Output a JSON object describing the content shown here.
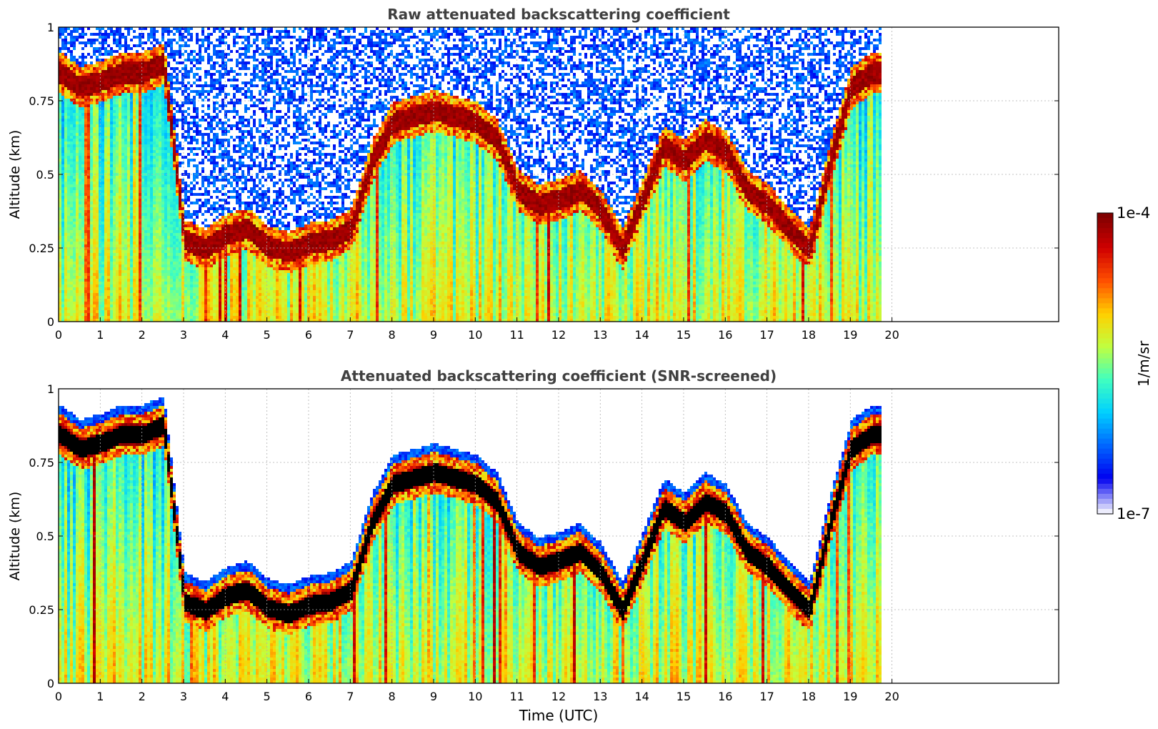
{
  "chart_data": [
    {
      "type": "heatmap",
      "title": "Raw attenuated backscattering coefficient",
      "xlabel": "",
      "ylabel": "Altitude (km)",
      "xlim": [
        0,
        24
      ],
      "ylim": [
        0,
        1
      ],
      "x_ticks": [
        "0",
        "1",
        "2",
        "3",
        "4",
        "5",
        "6",
        "7",
        "8",
        "9",
        "10",
        "11",
        "12",
        "13",
        "14",
        "15",
        "16",
        "17",
        "18",
        "19",
        "20"
      ],
      "y_ticks": [
        "0",
        "0.25",
        "0.5",
        "0.75",
        "1"
      ],
      "grid": true,
      "data_end_hour": 19.8,
      "screened": false,
      "cloud_layer_km": [
        [
          0.0,
          0.85
        ],
        [
          0.5,
          0.8
        ],
        [
          1.0,
          0.82
        ],
        [
          1.5,
          0.85
        ],
        [
          2.0,
          0.85
        ],
        [
          2.5,
          0.88
        ],
        [
          3.0,
          0.28
        ],
        [
          3.5,
          0.25
        ],
        [
          4.0,
          0.3
        ],
        [
          4.5,
          0.32
        ],
        [
          5.0,
          0.26
        ],
        [
          5.5,
          0.24
        ],
        [
          6.0,
          0.27
        ],
        [
          6.5,
          0.28
        ],
        [
          7.0,
          0.32
        ],
        [
          7.5,
          0.55
        ],
        [
          8.0,
          0.68
        ],
        [
          8.5,
          0.7
        ],
        [
          9.0,
          0.72
        ],
        [
          9.5,
          0.7
        ],
        [
          10.0,
          0.68
        ],
        [
          10.5,
          0.62
        ],
        [
          11.0,
          0.45
        ],
        [
          11.5,
          0.4
        ],
        [
          12.0,
          0.42
        ],
        [
          12.5,
          0.45
        ],
        [
          13.0,
          0.38
        ],
        [
          13.5,
          0.25
        ],
        [
          14.0,
          0.42
        ],
        [
          14.5,
          0.6
        ],
        [
          15.0,
          0.55
        ],
        [
          15.5,
          0.62
        ],
        [
          16.0,
          0.58
        ],
        [
          16.5,
          0.45
        ],
        [
          17.0,
          0.4
        ],
        [
          17.5,
          0.32
        ],
        [
          18.0,
          0.25
        ],
        [
          18.5,
          0.55
        ],
        [
          19.0,
          0.8
        ],
        [
          19.5,
          0.85
        ]
      ]
    },
    {
      "type": "heatmap",
      "title": "Attenuated backscattering coefficient (SNR-screened)",
      "xlabel": "Time (UTC)",
      "ylabel": "Altitude (km)",
      "xlim": [
        0,
        24
      ],
      "ylim": [
        0,
        1
      ],
      "x_ticks": [
        "0",
        "1",
        "2",
        "3",
        "4",
        "5",
        "6",
        "7",
        "8",
        "9",
        "10",
        "11",
        "12",
        "13",
        "14",
        "15",
        "16",
        "17",
        "18",
        "19",
        "20"
      ],
      "y_ticks": [
        "0",
        "0.25",
        "0.5",
        "0.75",
        "1"
      ],
      "grid": true,
      "data_end_hour": 19.8,
      "screened": true,
      "cloud_layer_km": [
        [
          0.0,
          0.85
        ],
        [
          0.5,
          0.8
        ],
        [
          1.0,
          0.82
        ],
        [
          1.5,
          0.85
        ],
        [
          2.0,
          0.85
        ],
        [
          2.5,
          0.88
        ],
        [
          3.0,
          0.28
        ],
        [
          3.5,
          0.25
        ],
        [
          4.0,
          0.3
        ],
        [
          4.5,
          0.32
        ],
        [
          5.0,
          0.26
        ],
        [
          5.5,
          0.24
        ],
        [
          6.0,
          0.27
        ],
        [
          6.5,
          0.28
        ],
        [
          7.0,
          0.32
        ],
        [
          7.5,
          0.55
        ],
        [
          8.0,
          0.68
        ],
        [
          8.5,
          0.7
        ],
        [
          9.0,
          0.72
        ],
        [
          9.5,
          0.7
        ],
        [
          10.0,
          0.68
        ],
        [
          10.5,
          0.62
        ],
        [
          11.0,
          0.45
        ],
        [
          11.5,
          0.4
        ],
        [
          12.0,
          0.42
        ],
        [
          12.5,
          0.45
        ],
        [
          13.0,
          0.38
        ],
        [
          13.5,
          0.25
        ],
        [
          14.0,
          0.42
        ],
        [
          14.5,
          0.6
        ],
        [
          15.0,
          0.55
        ],
        [
          15.5,
          0.62
        ],
        [
          16.0,
          0.58
        ],
        [
          16.5,
          0.45
        ],
        [
          17.0,
          0.4
        ],
        [
          17.5,
          0.32
        ],
        [
          18.0,
          0.25
        ],
        [
          18.5,
          0.55
        ],
        [
          19.0,
          0.8
        ],
        [
          19.5,
          0.85
        ]
      ]
    }
  ],
  "colorbar": {
    "max_label": "1e-4",
    "min_label": "1e-7",
    "unit_label": "1/m/sr",
    "colormap": "jet",
    "colormap_stops": [
      "#ececfc",
      "#0000f0",
      "#0066ff",
      "#00d0ff",
      "#40ffc0",
      "#c0ff40",
      "#ffd000",
      "#ff5000",
      "#d00000",
      "#800000"
    ]
  },
  "colors": {
    "axis": "#000000",
    "grid": "#b0b0b0",
    "title": "#404040",
    "screened_cloud": "#000000"
  }
}
